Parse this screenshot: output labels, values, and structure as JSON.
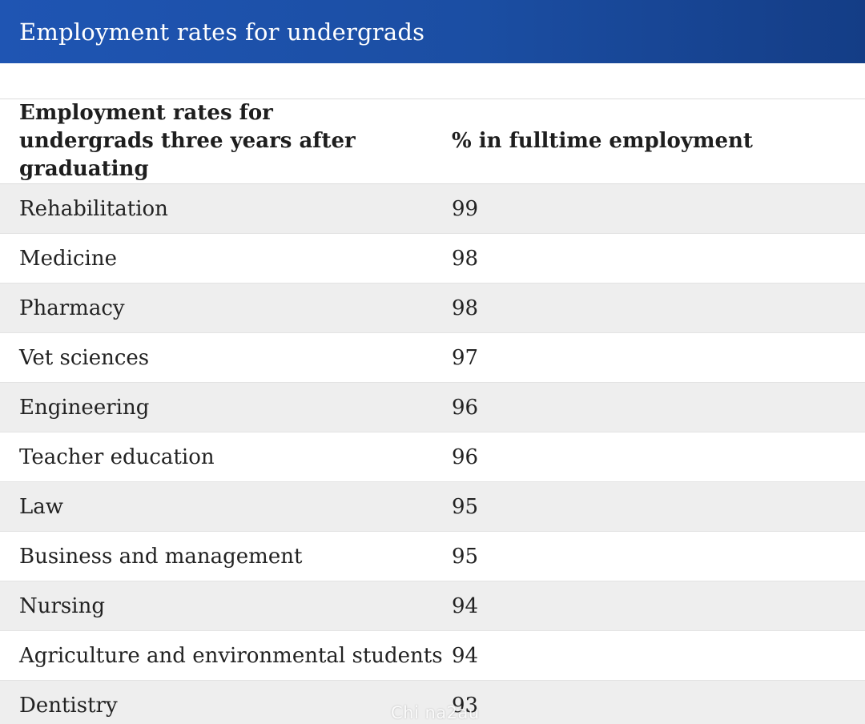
{
  "title": "Employment rates for undergrads",
  "chart_data": {
    "type": "table",
    "columns": [
      "Employment rates for undergrads three years after graduating",
      "% in fulltime employment"
    ],
    "rows": [
      {
        "label": "Rehabilitation",
        "value": 99
      },
      {
        "label": "Medicine",
        "value": 98
      },
      {
        "label": "Pharmacy",
        "value": 98
      },
      {
        "label": "Vet sciences",
        "value": 97
      },
      {
        "label": "Engineering",
        "value": 96
      },
      {
        "label": "Teacher education",
        "value": 96
      },
      {
        "label": "Law",
        "value": 95
      },
      {
        "label": "Business and management",
        "value": 95
      },
      {
        "label": "Nursing",
        "value": 94
      },
      {
        "label": "Agriculture and environmental students",
        "value": 94
      },
      {
        "label": "Dentistry",
        "value": 93
      }
    ]
  },
  "watermark": "Chi na2au",
  "colors": {
    "header_bar": "#1b4ea3",
    "stripe": "#eeeeee"
  }
}
